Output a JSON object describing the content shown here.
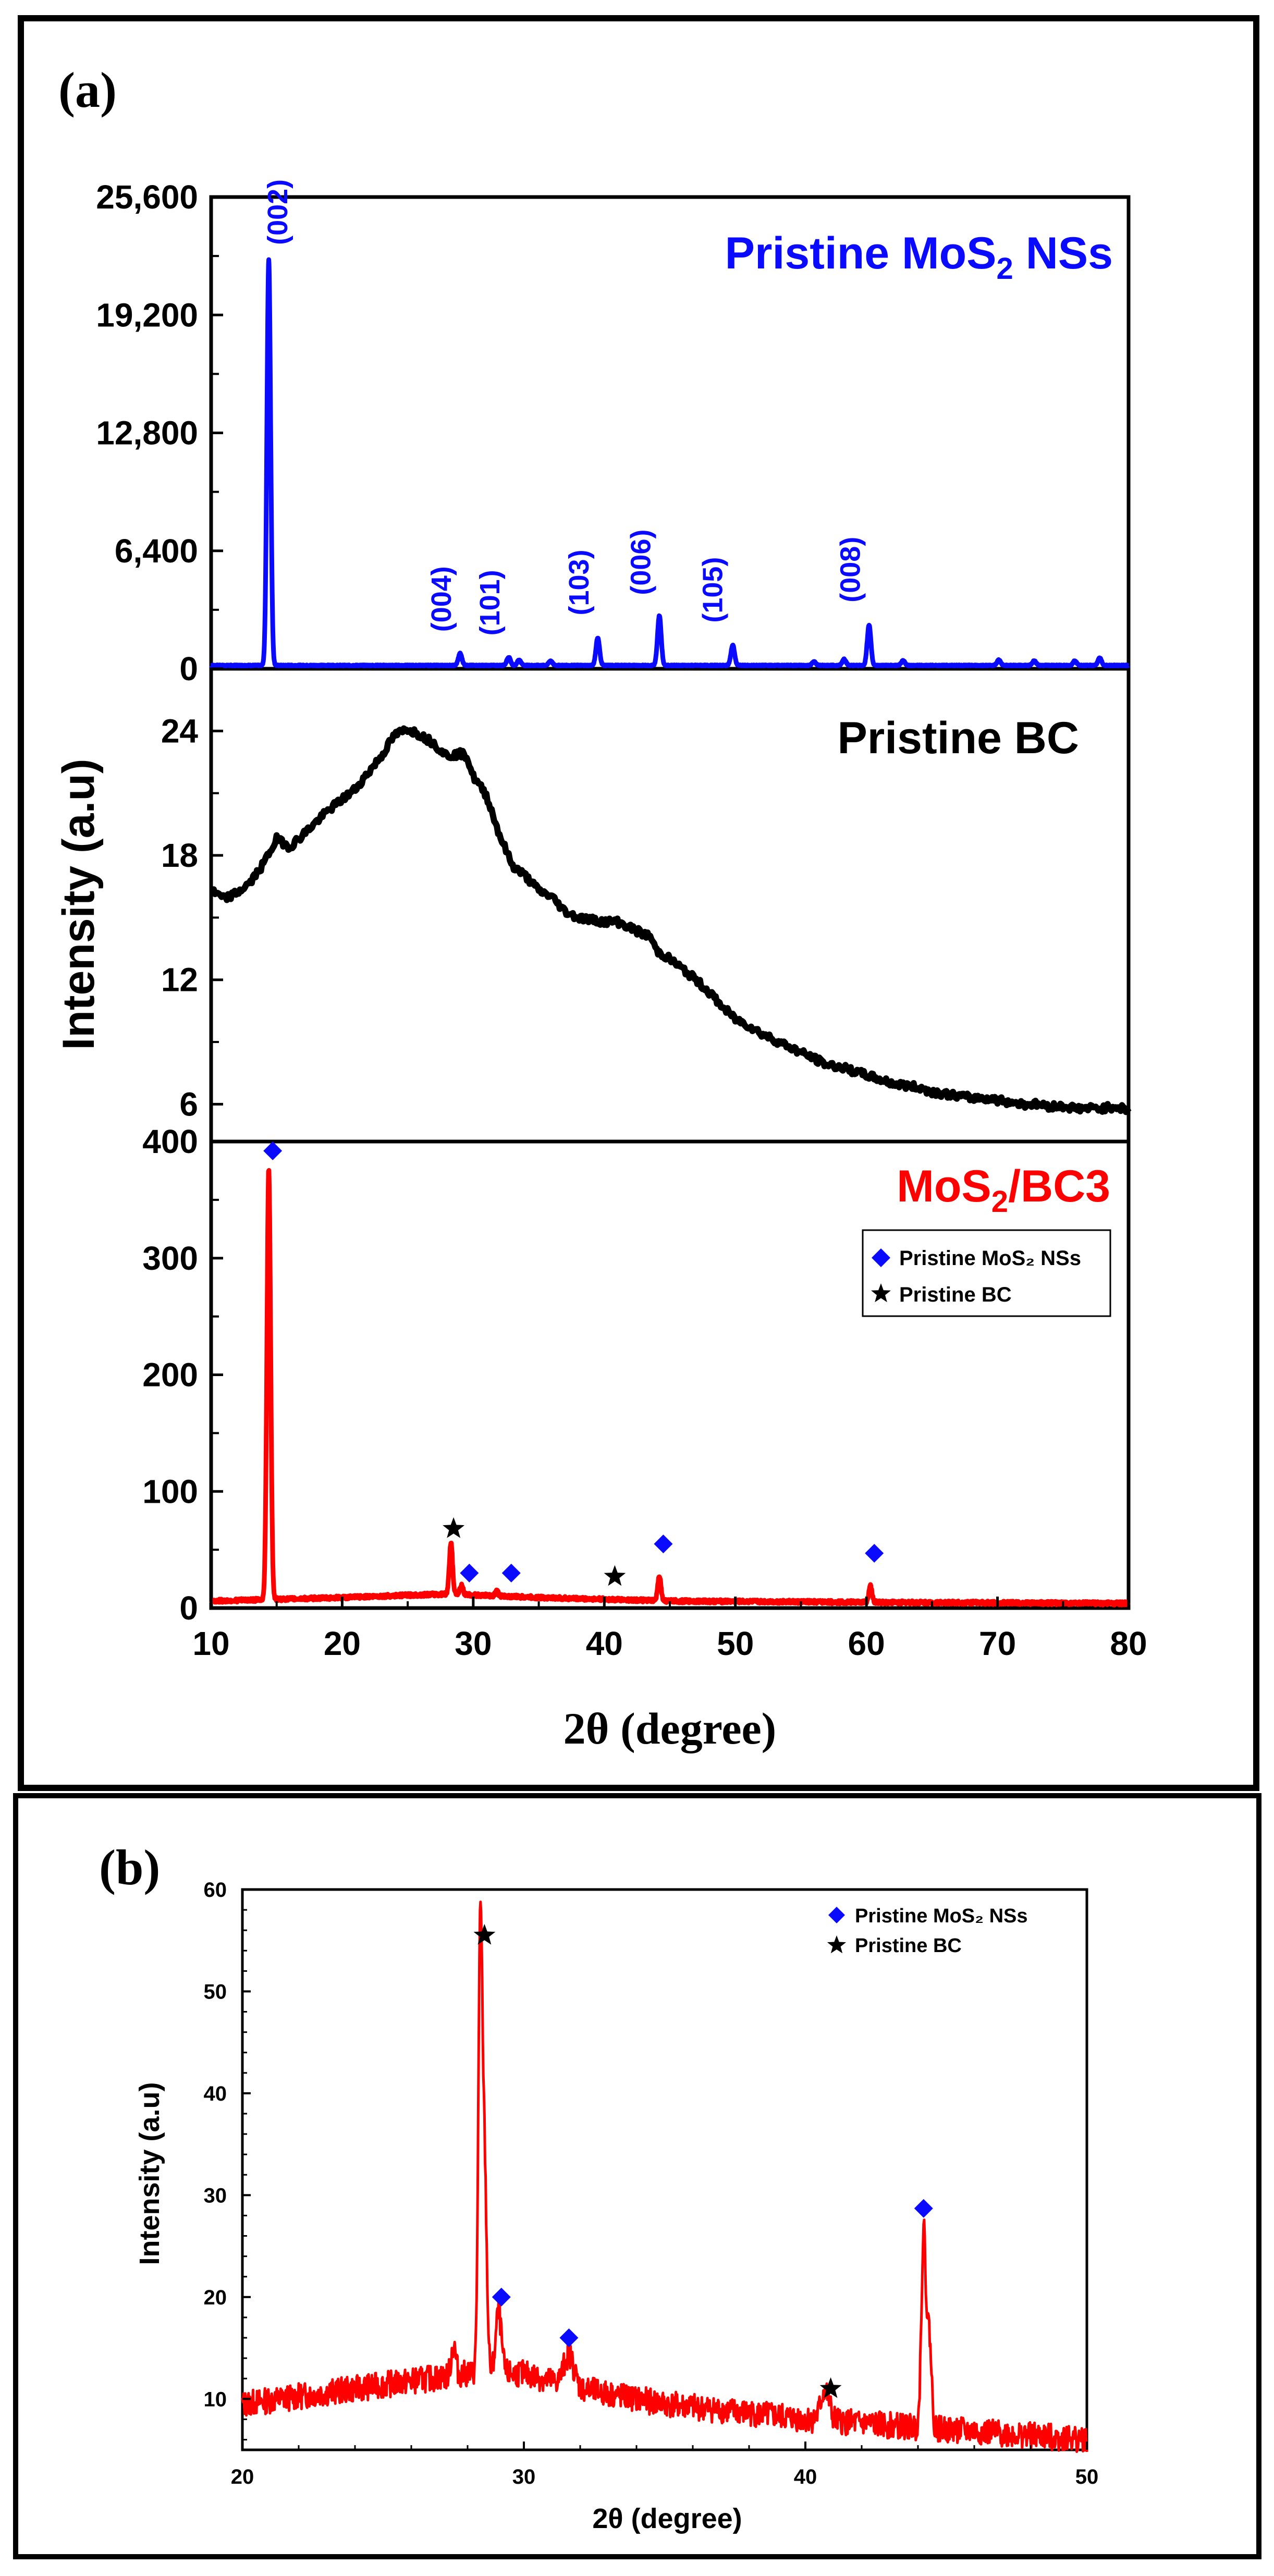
{
  "chart_data": [
    {
      "panel": "(a)",
      "type": "line",
      "xlabel": "2θ (degree)",
      "ylabel": "Intensity (a.u)",
      "xlim": [
        10,
        80
      ],
      "xticks": [
        "10",
        "20",
        "30",
        "40",
        "50",
        "60",
        "70",
        "80"
      ],
      "subplots": [
        {
          "name": "Pristine MoS2 NSs",
          "label_main": "Pristine MoS",
          "label_sub": "2",
          "label_tail": " NSs",
          "color": "#0a0aff",
          "ylim": [
            0,
            25600
          ],
          "yticks": [
            "0",
            "6,400",
            "12,800",
            "19,200",
            "25,600"
          ],
          "ytick_values": [
            0,
            6400,
            12800,
            19200,
            25600
          ],
          "baseline": 150,
          "peaks": [
            {
              "x": 14.4,
              "y": 22000,
              "w": 0.14
            },
            {
              "x": 29.0,
              "y": 650,
              "w": 0.14
            },
            {
              "x": 32.7,
              "y": 450,
              "w": 0.14
            },
            {
              "x": 33.5,
              "y": 300,
              "w": 0.14
            },
            {
              "x": 35.9,
              "y": 250,
              "w": 0.14
            },
            {
              "x": 39.5,
              "y": 1500,
              "w": 0.14
            },
            {
              "x": 44.2,
              "y": 2700,
              "w": 0.14
            },
            {
              "x": 49.8,
              "y": 1100,
              "w": 0.14
            },
            {
              "x": 56.0,
              "y": 200,
              "w": 0.14
            },
            {
              "x": 58.3,
              "y": 350,
              "w": 0.14
            },
            {
              "x": 60.2,
              "y": 2200,
              "w": 0.14
            },
            {
              "x": 62.8,
              "y": 250,
              "w": 0.14
            },
            {
              "x": 70.1,
              "y": 300,
              "w": 0.14
            },
            {
              "x": 72.8,
              "y": 250,
              "w": 0.14
            },
            {
              "x": 75.9,
              "y": 250,
              "w": 0.14
            },
            {
              "x": 77.8,
              "y": 400,
              "w": 0.14
            }
          ],
          "annotations": [
            {
              "text": "(002)",
              "x": 15.8,
              "y": 23000
            },
            {
              "text": "(004)",
              "x": 28.3,
              "y": 2000
            },
            {
              "text": "(101)",
              "x": 32.0,
              "y": 1800
            },
            {
              "text": "(103)",
              "x": 38.8,
              "y": 2900
            },
            {
              "text": "(006)",
              "x": 43.5,
              "y": 4000
            },
            {
              "text": "(105)",
              "x": 49.0,
              "y": 2500
            },
            {
              "text": "(008)",
              "x": 59.5,
              "y": 3600
            }
          ]
        },
        {
          "name": "Pristine BC",
          "label": "Pristine BC",
          "color": "#000000",
          "ylim": [
            4.2,
            27
          ],
          "yticks": [
            "6",
            "12",
            "18",
            "24"
          ],
          "ytick_values": [
            6,
            12,
            18,
            24
          ],
          "points": [
            [
              10,
              16.3
            ],
            [
              11,
              15.9
            ],
            [
              12,
              16.2
            ],
            [
              13,
              16.7
            ],
            [
              14,
              17.6
            ],
            [
              15,
              18.8
            ],
            [
              16,
              18.4
            ],
            [
              17,
              19.0
            ],
            [
              18,
              19.6
            ],
            [
              19,
              20.2
            ],
            [
              20,
              20.7
            ],
            [
              21,
              21.2
            ],
            [
              22,
              22.0
            ],
            [
              23,
              22.8
            ],
            [
              24,
              23.8
            ],
            [
              25,
              24.1
            ],
            [
              26,
              23.8
            ],
            [
              27,
              23.4
            ],
            [
              28,
              22.8
            ],
            [
              29,
              22.9
            ],
            [
              29.5,
              22.8
            ],
            [
              30,
              21.8
            ],
            [
              31,
              20.9
            ],
            [
              32,
              19.0
            ],
            [
              33,
              17.5
            ],
            [
              34,
              17.0
            ],
            [
              35,
              16.3
            ],
            [
              36,
              16.0
            ],
            [
              37,
              15.3
            ],
            [
              38,
              15.0
            ],
            [
              39,
              14.9
            ],
            [
              40,
              14.8
            ],
            [
              41,
              14.8
            ],
            [
              42,
              14.5
            ],
            [
              43,
              14.2
            ],
            [
              43.5,
              14.1
            ],
            [
              44,
              13.4
            ],
            [
              45,
              13.0
            ],
            [
              46,
              12.5
            ],
            [
              47,
              12.0
            ],
            [
              48,
              11.4
            ],
            [
              49,
              10.7
            ],
            [
              50,
              10.1
            ],
            [
              51,
              9.8
            ],
            [
              52,
              9.4
            ],
            [
              53,
              9.1
            ],
            [
              54,
              8.8
            ],
            [
              55,
              8.5
            ],
            [
              56,
              8.2
            ],
            [
              57,
              7.9
            ],
            [
              58,
              7.8
            ],
            [
              59,
              7.6
            ],
            [
              60,
              7.4
            ],
            [
              61,
              7.2
            ],
            [
              62,
              7.0
            ],
            [
              63,
              6.9
            ],
            [
              64,
              6.8
            ],
            [
              65,
              6.6
            ],
            [
              66,
              6.5
            ],
            [
              67,
              6.4
            ],
            [
              68,
              6.3
            ],
            [
              69,
              6.3
            ],
            [
              70,
              6.2
            ],
            [
              71,
              6.1
            ],
            [
              72,
              6.0
            ],
            [
              73,
              6.0
            ],
            [
              74,
              5.9
            ],
            [
              75,
              5.9
            ],
            [
              76,
              5.8
            ],
            [
              77,
              5.8
            ],
            [
              78,
              5.8
            ],
            [
              79,
              5.9
            ],
            [
              80,
              5.7
            ]
          ]
        },
        {
          "name": "MoS2/BC3",
          "label_main": "MoS",
          "label_sub": "2",
          "label_tail": "/BC3",
          "color": "#ff0000",
          "ylim": [
            0,
            400
          ],
          "yticks": [
            "0",
            "100",
            "200",
            "300",
            "400"
          ],
          "ytick_values": [
            0,
            100,
            200,
            300,
            400
          ],
          "background": [
            [
              10,
              6
            ],
            [
              20,
              9
            ],
            [
              25,
              11
            ],
            [
              28,
              12
            ],
            [
              35,
              9
            ],
            [
              45,
              6
            ],
            [
              60,
              5
            ],
            [
              80,
              4
            ]
          ],
          "peaks": [
            {
              "x": 14.4,
              "y": 370,
              "w": 0.14
            },
            {
              "x": 28.3,
              "y": 45,
              "w": 0.12
            },
            {
              "x": 29.1,
              "y": 8,
              "w": 0.12
            },
            {
              "x": 31.8,
              "y": 4,
              "w": 0.12
            },
            {
              "x": 44.2,
              "y": 22,
              "w": 0.12
            },
            {
              "x": 60.3,
              "y": 14,
              "w": 0.12
            }
          ],
          "markers": [
            {
              "symbol": "diamond",
              "x": 14.7,
              "y": 392
            },
            {
              "symbol": "star",
              "x": 28.5,
              "y": 68
            },
            {
              "symbol": "diamond",
              "x": 29.7,
              "y": 30
            },
            {
              "symbol": "diamond",
              "x": 32.9,
              "y": 30
            },
            {
              "symbol": "star",
              "x": 40.8,
              "y": 27
            },
            {
              "symbol": "diamond",
              "x": 44.5,
              "y": 55
            },
            {
              "symbol": "diamond",
              "x": 60.6,
              "y": 47
            }
          ],
          "legend": [
            {
              "symbol": "diamond",
              "label": "Pristine MoS₂ NSs"
            },
            {
              "symbol": "star",
              "label": "Pristine BC"
            }
          ]
        }
      ]
    },
    {
      "panel": "(b)",
      "type": "line",
      "xlabel": "2θ (degree)",
      "ylabel": "Intensity (a.u)",
      "xlim": [
        20,
        50
      ],
      "ylim": [
        5,
        60
      ],
      "xticks": [
        "20",
        "30",
        "40",
        "50"
      ],
      "xtick_values": [
        20,
        30,
        40,
        50
      ],
      "yticks": [
        "10",
        "20",
        "30",
        "40",
        "50",
        "60"
      ],
      "ytick_values": [
        10,
        20,
        30,
        40,
        50,
        60
      ],
      "color": "#ff0000",
      "background": [
        [
          20,
          9.5
        ],
        [
          24,
          11
        ],
        [
          28,
          12.5
        ],
        [
          30,
          12.5
        ],
        [
          32,
          11
        ],
        [
          35,
          9.5
        ],
        [
          40,
          8
        ],
        [
          45,
          7
        ],
        [
          50,
          6
        ]
      ],
      "peaks": [
        {
          "x": 27.5,
          "y": 3,
          "w": 0.08
        },
        {
          "x": 28.45,
          "y": 42,
          "w": 0.07
        },
        {
          "x": 28.6,
          "y": 20,
          "w": 0.08
        },
        {
          "x": 29.1,
          "y": 6,
          "w": 0.1
        },
        {
          "x": 31.6,
          "y": 3,
          "w": 0.18
        },
        {
          "x": 40.7,
          "y": 3,
          "w": 0.15
        },
        {
          "x": 44.2,
          "y": 19,
          "w": 0.08
        },
        {
          "x": 44.4,
          "y": 9,
          "w": 0.08
        }
      ],
      "markers": [
        {
          "symbol": "star",
          "x": 28.6,
          "y": 55.5
        },
        {
          "symbol": "diamond",
          "x": 29.2,
          "y": 20
        },
        {
          "symbol": "diamond",
          "x": 31.6,
          "y": 16
        },
        {
          "symbol": "star",
          "x": 40.9,
          "y": 11
        },
        {
          "symbol": "diamond",
          "x": 44.2,
          "y": 28.7
        }
      ],
      "legend": [
        {
          "symbol": "diamond",
          "label": "Pristine MoS₂ NSs"
        },
        {
          "symbol": "star",
          "label": "Pristine BC"
        }
      ]
    }
  ],
  "colors": {
    "marker_diamond": "#0a0aff",
    "marker_star": "#000000",
    "frame": "#000000"
  },
  "labels": {
    "panel_a_open": "(",
    "panel_a_letter": "a",
    "panel_a_close": ")",
    "panel_b_open": "(",
    "panel_b_letter": "b",
    "panel_b_close": ")",
    "theta_prefix": "2θ",
    "theta_suffix": " (degree)"
  }
}
